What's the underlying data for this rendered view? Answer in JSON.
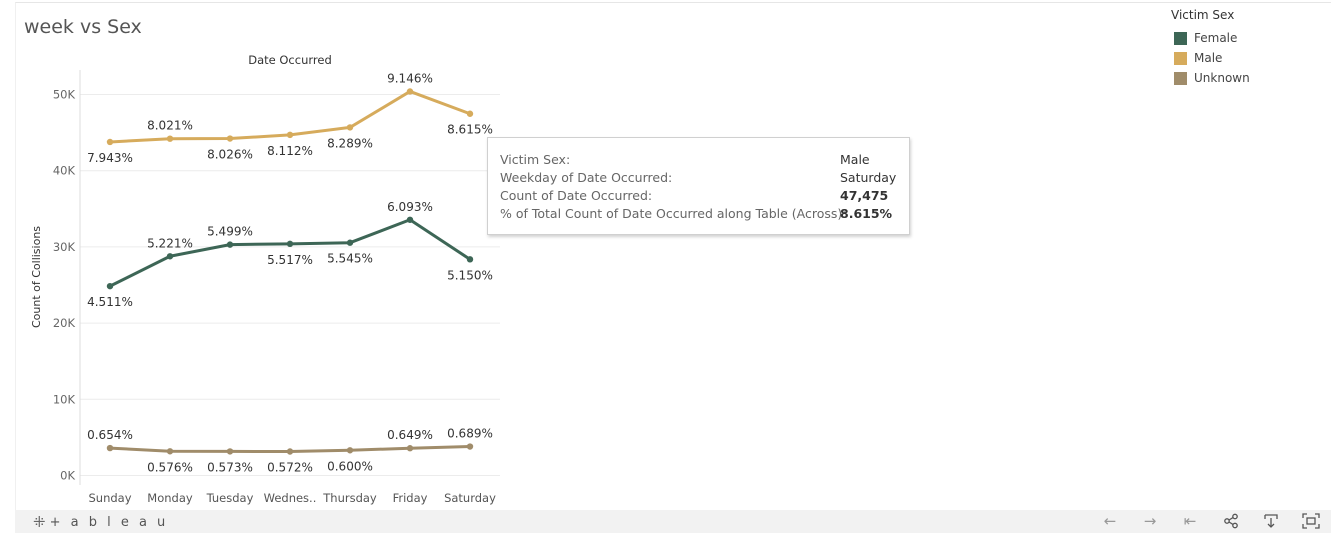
{
  "title": "week vs Sex",
  "chart_data": {
    "type": "line",
    "header": "Date Occurred",
    "xlabel": "",
    "ylabel": "Count of Collisions",
    "categories": [
      "Sunday",
      "Monday",
      "Tuesday",
      "Wednes..",
      "Thursday",
      "Friday",
      "Saturday"
    ],
    "ylim": [
      0,
      53000
    ],
    "yticks": [
      0,
      10000,
      20000,
      30000,
      40000,
      50000
    ],
    "ytick_labels": [
      "0K",
      "10K",
      "20K",
      "30K",
      "40K",
      "50K"
    ],
    "grid": true,
    "series": [
      {
        "name": "Female",
        "color": "#3d6656",
        "values": [
          24850,
          28770,
          30300,
          30400,
          30550,
          33560,
          28370
        ],
        "labels": [
          "4.511%",
          "5.221%",
          "5.499%",
          "5.517%",
          "5.545%",
          "6.093%",
          "5.150%"
        ],
        "label_pos": [
          "below",
          "above",
          "above",
          "below",
          "below",
          "above",
          "below"
        ]
      },
      {
        "name": "Male",
        "color": "#d6ab5c",
        "values": [
          43770,
          44200,
          44220,
          44700,
          45680,
          50400,
          47475
        ],
        "labels": [
          "7.943%",
          "8.021%",
          "8.026%",
          "8.112%",
          "8.289%",
          "9.146%",
          "8.615%"
        ],
        "label_pos": [
          "below",
          "above",
          "below",
          "below",
          "below",
          "above",
          "below"
        ]
      },
      {
        "name": "Unknown",
        "color": "#a08c6a",
        "values": [
          3600,
          3180,
          3160,
          3150,
          3310,
          3580,
          3800
        ],
        "labels": [
          "0.654%",
          "0.576%",
          "0.573%",
          "0.572%",
          "0.600%",
          "0.649%",
          "0.689%"
        ],
        "label_pos": [
          "above",
          "below",
          "below",
          "below",
          "below",
          "above",
          "above"
        ]
      }
    ]
  },
  "legend": {
    "title": "Victim Sex",
    "items": [
      {
        "label": "Female",
        "color": "#3d6656"
      },
      {
        "label": "Male",
        "color": "#d6ab5c"
      },
      {
        "label": "Unknown",
        "color": "#a08c6a"
      }
    ]
  },
  "tooltip": {
    "rows": [
      {
        "label": "Victim Sex:",
        "value": "Male",
        "bold": false
      },
      {
        "label": "Weekday of Date Occurred:",
        "value": "Saturday",
        "bold": false
      },
      {
        "label": "Count of Date Occurred:",
        "value": "47,475",
        "bold": true
      },
      {
        "label": "% of Total Count of Date Occurred along Table (Across):",
        "value": "8.615%",
        "bold": true
      }
    ]
  },
  "footer": {
    "brand": "+ a b l e a u",
    "brand_icon": "tableau-logo-icon",
    "buttons": [
      {
        "name": "undo-button",
        "icon": "arrow-left-icon",
        "glyph": "←"
      },
      {
        "name": "redo-button",
        "icon": "arrow-right-icon",
        "glyph": "→"
      },
      {
        "name": "revert-button",
        "icon": "skip-to-start-icon",
        "glyph": "⇤"
      },
      {
        "name": "share-button",
        "icon": "share-icon",
        "glyph": "⋖"
      },
      {
        "name": "download-button",
        "icon": "download-icon",
        "glyph": "⤓"
      },
      {
        "name": "fullscreen-button",
        "icon": "fullscreen-icon",
        "glyph": "⛶"
      }
    ]
  }
}
